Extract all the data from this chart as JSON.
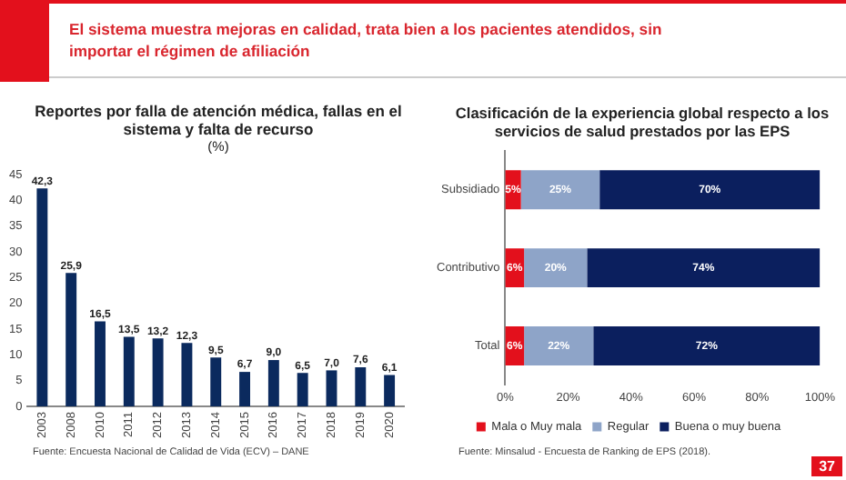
{
  "chart_data": [
    {
      "type": "bar",
      "title": "Reportes por falla de atención médica, fallas en el sistema y falta de recurso",
      "subtitle": "(%)",
      "categories": [
        "2003",
        "2008",
        "2010",
        "2011",
        "2012",
        "2013",
        "2014",
        "2015",
        "2016",
        "2017",
        "2018",
        "2019",
        "2020"
      ],
      "values": [
        42.3,
        25.9,
        16.5,
        13.5,
        13.2,
        12.3,
        9.5,
        6.7,
        9.0,
        6.5,
        7.0,
        7.6,
        6.1
      ],
      "value_labels": [
        "42,3",
        "25,9",
        "16,5",
        "13,5",
        "13,2",
        "12,3",
        "9,5",
        "6,7",
        "9,0",
        "6,5",
        "7,0",
        "7,6",
        "6,1"
      ],
      "color": "#0b2a5e",
      "ylim": [
        0,
        45
      ],
      "yticks": [
        0,
        5,
        10,
        15,
        20,
        25,
        30,
        35,
        40,
        45
      ],
      "grid": false,
      "legend": false,
      "annotations": [
        "El sistema muestra mejoras en calidad, trata bien a los pacientes atendidos, sin importar el régimen de afiliación",
        "Fuente: Encuesta Nacional de Calidad de Vida (ECV) – DANE"
      ]
    },
    {
      "type": "bar",
      "orientation": "horizontal",
      "stacked": true,
      "title": "Clasificación de la experiencia global respecto a los servicios de salud prestados por las EPS",
      "categories": [
        "Subsidiado",
        "Contributivo",
        "Total"
      ],
      "series": [
        {
          "name": "Mala o Muy mala",
          "color": "#e3101c",
          "values": [
            5,
            6,
            6
          ],
          "value_labels": [
            "5%",
            "6%",
            "6%"
          ]
        },
        {
          "name": "Regular",
          "color": "#8ea4c8",
          "values": [
            25,
            20,
            22
          ],
          "value_labels": [
            "25%",
            "20%",
            "22%"
          ]
        },
        {
          "name": "Buena o muy buena",
          "color": "#0b1f5e",
          "values": [
            70,
            74,
            72
          ],
          "value_labels": [
            "70%",
            "74%",
            "72%"
          ]
        }
      ],
      "xlim": [
        0,
        100
      ],
      "xticks": [
        {
          "value": 0,
          "label": "0%"
        },
        {
          "value": 20,
          "label": "20%"
        },
        {
          "value": 40,
          "label": "40%"
        },
        {
          "value": 60,
          "label": "60%"
        },
        {
          "value": 80,
          "label": "80%"
        },
        {
          "value": 100,
          "label": "100%"
        }
      ],
      "grid": false,
      "legend": "bottom",
      "annotations": [
        "Fuente: Minsalud - Encuesta de Ranking de EPS (2018).",
        "37"
      ]
    }
  ]
}
